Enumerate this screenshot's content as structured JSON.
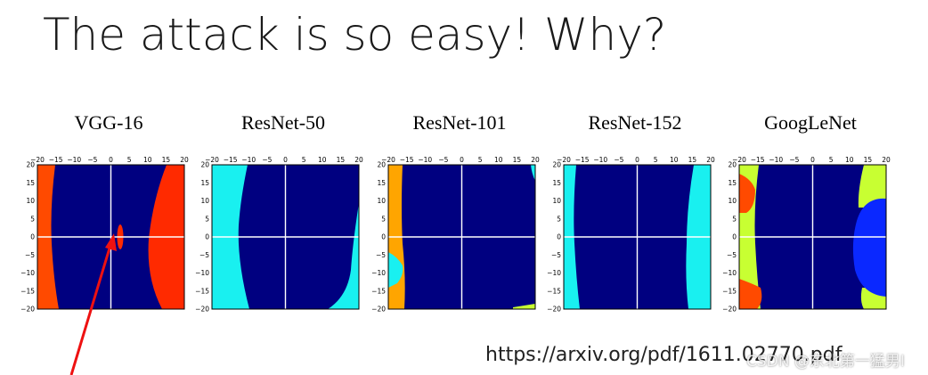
{
  "slide": {
    "title": "The attack is so easy! Why?",
    "source_url": "https://arxiv.org/pdf/1611.02770.pdf",
    "watermark": "CSDN @东北第一猛男I"
  },
  "panels": [
    {
      "title": "VGG-16"
    },
    {
      "title": "ResNet-50"
    },
    {
      "title": "ResNet-101"
    },
    {
      "title": "ResNet-152"
    },
    {
      "title": "GoogLeNet"
    }
  ],
  "axis": {
    "ticks": [
      -20,
      -15,
      -10,
      -5,
      0,
      5,
      10,
      15,
      20
    ],
    "x_tick_labels": [
      "−20",
      "−15",
      "−10",
      "−5",
      "0",
      "5",
      "10",
      "15",
      "20"
    ],
    "y_tick_labels": [
      "20",
      "15",
      "10",
      "5",
      "0",
      "−5",
      "−10",
      "−15",
      "−20"
    ]
  },
  "colors": {
    "main_region": "#000080",
    "cyan": "#19f0f0",
    "red": "#ff2a00",
    "orange_red": "#ff4a00",
    "orange": "#ffa500",
    "yellow_green": "#c8ff32",
    "blue": "#0a28ff",
    "arrow": "#ee1111"
  }
}
